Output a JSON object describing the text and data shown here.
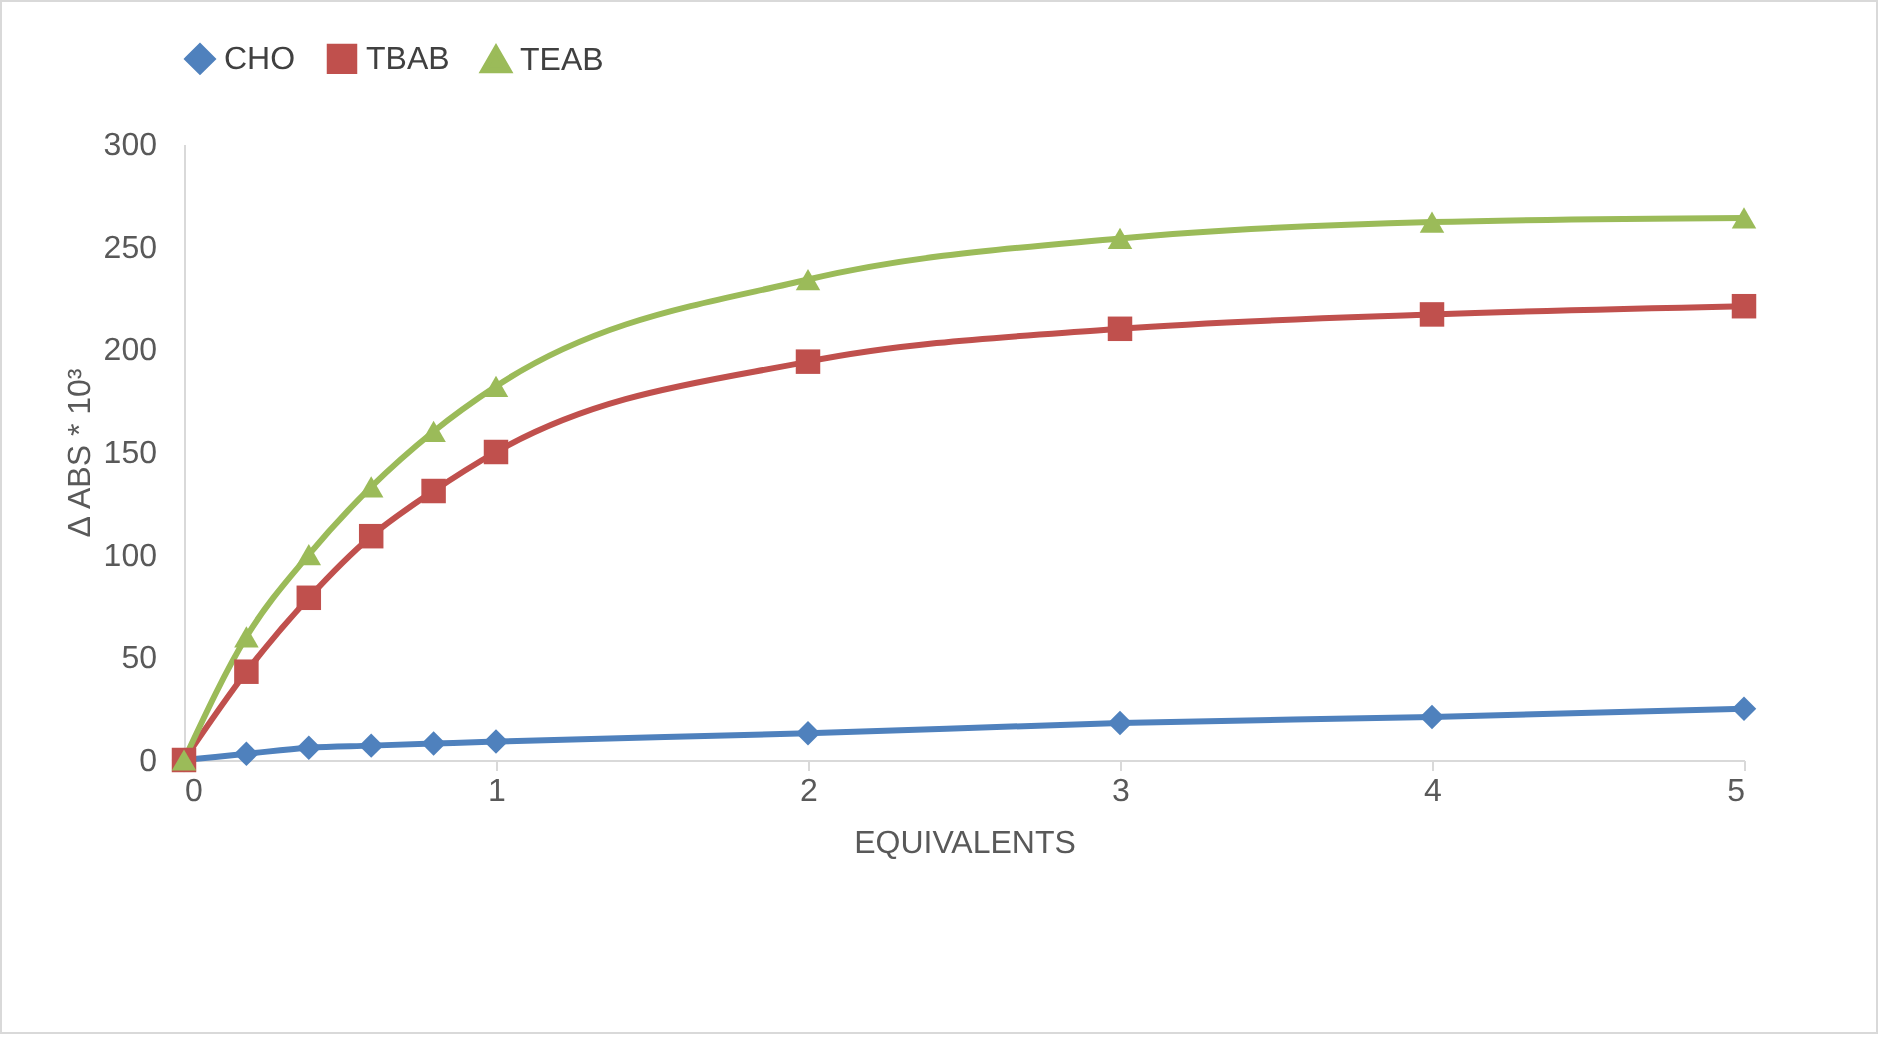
{
  "chart_data": {
    "type": "line",
    "xlabel": "EQUIVALENTS",
    "ylabel": "Δ ABS * 10³",
    "x": [
      0,
      0.2,
      0.4,
      0.6,
      0.8,
      1,
      2,
      3,
      4,
      5
    ],
    "series": [
      {
        "name": "CHO",
        "color": "#4f81bd",
        "marker": "diamond",
        "values": [
          0,
          3,
          6,
          7,
          8,
          9,
          13,
          18,
          21,
          25
        ]
      },
      {
        "name": "TBAB",
        "color": "#c0504d",
        "marker": "square",
        "values": [
          0,
          43,
          79,
          109,
          131,
          150,
          194,
          210,
          217,
          221
        ]
      },
      {
        "name": "TEAB",
        "color": "#9bbb59",
        "marker": "triangle",
        "values": [
          0,
          60,
          100,
          133,
          160,
          182,
          234,
          254,
          262,
          264
        ]
      }
    ],
    "xlim": [
      0,
      5
    ],
    "xticks": [
      0,
      1,
      2,
      3,
      4,
      5
    ],
    "ylim": [
      0,
      300
    ],
    "yticks": [
      0,
      50,
      100,
      150,
      200,
      250,
      300
    ],
    "grid": false,
    "legend": "top"
  }
}
